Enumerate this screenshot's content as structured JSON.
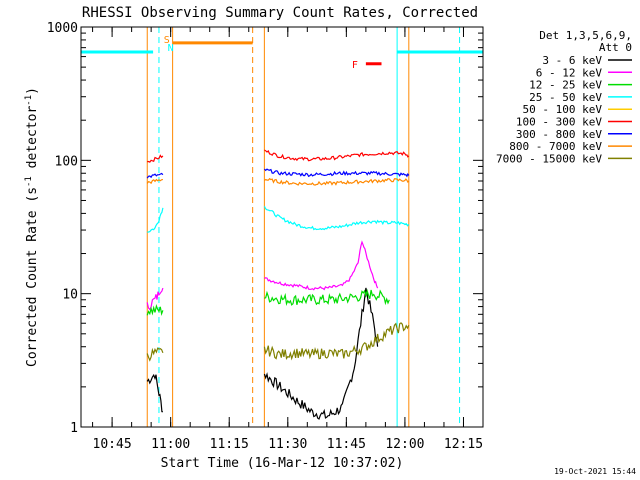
{
  "chart_data": {
    "type": "line",
    "title": "RHESSI Observing Summary Count Rates, Corrected",
    "xlabel": "Start Time (16-Mar-12 10:37:02)",
    "ylabel": "Corrected Count Rate (s⁻¹ detector⁻¹)",
    "ylabel_parts": [
      "Corrected Count Rate (s",
      "-1",
      " detector",
      "-1",
      ")"
    ],
    "yscale": "log",
    "ylim": [
      1,
      1000
    ],
    "yticks": [
      {
        "value": 1,
        "label": "1"
      },
      {
        "value": 10,
        "label": "10"
      },
      {
        "value": 100,
        "label": "100"
      },
      {
        "value": 1000,
        "label": "1000"
      }
    ],
    "xlim": [
      "10:37:02",
      "12:20:00"
    ],
    "xticks": [
      {
        "t": "10:45",
        "label": "10:45"
      },
      {
        "t": "11:00",
        "label": "11:00"
      },
      {
        "t": "11:15",
        "label": "11:15"
      },
      {
        "t": "11:30",
        "label": "11:30"
      },
      {
        "t": "11:45",
        "label": "11:45"
      },
      {
        "t": "12:00",
        "label": "12:00"
      },
      {
        "t": "12:15",
        "label": "12:15"
      }
    ],
    "legend_header": [
      "Det 1,3,5,6,9,",
      "Att 0"
    ],
    "legend_position": "top-right",
    "series": [
      {
        "name": "3 - 6 keV",
        "color": "#000000",
        "segments": [
          {
            "x": [
              "10:54",
              "10:56",
              "10:57",
              "10:58"
            ],
            "y": [
              2.2,
              2.5,
              1.8,
              1.3
            ]
          },
          {
            "x": [
              "11:24",
              "11:28",
              "11:32",
              "11:36",
              "11:40",
              "11:44",
              "11:47",
              "11:50",
              "11:52",
              "11:53"
            ],
            "y": [
              2.5,
              2.0,
              1.6,
              1.3,
              1.2,
              1.4,
              2.8,
              11,
              6,
              4
            ]
          }
        ]
      },
      {
        "name": "6 - 12 keV",
        "color": "#ff00ff",
        "segments": [
          {
            "x": [
              "10:54",
              "10:56",
              "10:57",
              "10:58"
            ],
            "y": [
              8,
              9,
              10,
              11
            ]
          },
          {
            "x": [
              "11:24",
              "11:28",
              "11:32",
              "11:36",
              "11:40",
              "11:44",
              "11:46",
              "11:48",
              "11:49",
              "11:50",
              "11:52",
              "11:53"
            ],
            "y": [
              13,
              12,
              11.5,
              11,
              11,
              11.5,
              13,
              17,
              25,
              20,
              13,
              11
            ]
          }
        ]
      },
      {
        "name": "12 - 25 keV",
        "color": "#00dd00",
        "segments": [
          {
            "x": [
              "10:54",
              "10:56",
              "10:58"
            ],
            "y": [
              7.5,
              7.5,
              7.5
            ]
          },
          {
            "x": [
              "11:24",
              "11:30",
              "11:36",
              "11:42",
              "11:48",
              "11:52",
              "11:56"
            ],
            "y": [
              9.5,
              9,
              9,
              9,
              9.5,
              10,
              9
            ]
          }
        ]
      },
      {
        "name": "25 - 50 keV",
        "color": "#00ffff",
        "segments": [
          {
            "x": [
              "10:54",
              "10:56",
              "10:57",
              "10:58"
            ],
            "y": [
              29,
              31,
              36,
              44
            ]
          },
          {
            "x": [
              "11:24",
              "11:28",
              "11:32",
              "11:36",
              "11:40",
              "11:44",
              "11:48",
              "11:52",
              "11:55",
              "11:58",
              "12:01"
            ],
            "y": [
              45,
              37,
              33,
              31,
              31,
              32,
              34,
              35,
              34,
              34,
              33
            ]
          }
        ]
      },
      {
        "name": "50 - 100 keV",
        "color": "#ffcc00",
        "segments": []
      },
      {
        "name": "100 - 300 keV",
        "color": "#ff0000",
        "segments": [
          {
            "x": [
              "10:54",
              "10:56",
              "10:58"
            ],
            "y": [
              98,
              102,
              108
            ]
          },
          {
            "x": [
              "11:24",
              "11:28",
              "11:32",
              "11:36",
              "11:40",
              "11:44",
              "11:48",
              "11:52",
              "11:56",
              "12:00",
              "12:01"
            ],
            "y": [
              118,
              107,
              103,
              102,
              103,
              106,
              110,
              112,
              114,
              112,
              108
            ]
          }
        ]
      },
      {
        "name": "300 - 800 keV",
        "color": "#0000ff",
        "segments": [
          {
            "x": [
              "10:54",
              "10:56",
              "10:58"
            ],
            "y": [
              75,
              77,
              78
            ]
          },
          {
            "x": [
              "11:24",
              "11:28",
              "11:32",
              "11:36",
              "11:40",
              "11:44",
              "11:48",
              "11:52",
              "11:56",
              "12:00",
              "12:01"
            ],
            "y": [
              85,
              80,
              79,
              78,
              79,
              80,
              80,
              80,
              79,
              78,
              77
            ]
          }
        ]
      },
      {
        "name": "800 - 7000 keV",
        "color": "#ff8800",
        "segments": [
          {
            "x": [
              "10:54",
              "10:56",
              "10:58"
            ],
            "y": [
              68,
              70,
              72
            ]
          },
          {
            "x": [
              "11:24",
              "11:28",
              "11:32",
              "11:36",
              "11:40",
              "11:44",
              "11:48",
              "11:52",
              "11:56",
              "12:00",
              "12:01"
            ],
            "y": [
              72,
              69,
              67,
              67,
              67,
              68,
              69,
              70,
              71,
              71,
              70
            ]
          }
        ]
      },
      {
        "name": "7000 - 15000 keV",
        "color": "#808000",
        "segments": [
          {
            "x": [
              "10:54",
              "10:56",
              "10:58"
            ],
            "y": [
              3.4,
              3.6,
              3.6
            ]
          },
          {
            "x": [
              "11:24",
              "11:28",
              "11:32",
              "11:36",
              "11:40",
              "11:44",
              "11:48",
              "11:50",
              "11:52",
              "11:54",
              "11:56",
              "11:58",
              "12:01"
            ],
            "y": [
              3.8,
              3.5,
              3.6,
              3.5,
              3.6,
              3.5,
              3.8,
              4.0,
              4.4,
              4.8,
              5.2,
              5.5,
              5.8
            ]
          }
        ]
      }
    ],
    "overlays": {
      "cyan_segments": [
        {
          "x_start": "10:37:02",
          "x_end": "10:55:30",
          "y": 650
        },
        {
          "x_start": "11:58",
          "x_end": "12:20",
          "y": 650
        }
      ],
      "orange_segment": {
        "x_start": "11:00:30",
        "x_end": "11:21",
        "y": 760
      },
      "flare_marker": {
        "label": "F",
        "color": "#ff0000",
        "x_start": "11:50",
        "x_end": "11:54",
        "y": 530
      },
      "saa_label": {
        "label": "S",
        "color": "#ff8800",
        "x": "10:59"
      },
      "night_label": {
        "label": "N",
        "color": "#00ffff",
        "x": "11:00"
      },
      "vertical_lines": [
        {
          "x": "10:37:02",
          "color": "#00ffff",
          "style": "solid"
        },
        {
          "x": "10:54",
          "color": "#ff8800",
          "style": "solid"
        },
        {
          "x": "10:57",
          "color": "#00ffff",
          "style": "dashed"
        },
        {
          "x": "11:00:30",
          "color": "#ff8800",
          "style": "solid"
        },
        {
          "x": "11:21",
          "color": "#ff8800",
          "style": "dashed"
        },
        {
          "x": "11:24",
          "color": "#ff8800",
          "style": "solid"
        },
        {
          "x": "11:58",
          "color": "#00ffff",
          "style": "solid"
        },
        {
          "x": "12:01",
          "color": "#ff8800",
          "style": "solid"
        },
        {
          "x": "12:14",
          "color": "#00ffff",
          "style": "dashed"
        }
      ]
    },
    "footer_date": "19-Oct-2021 15:44"
  }
}
